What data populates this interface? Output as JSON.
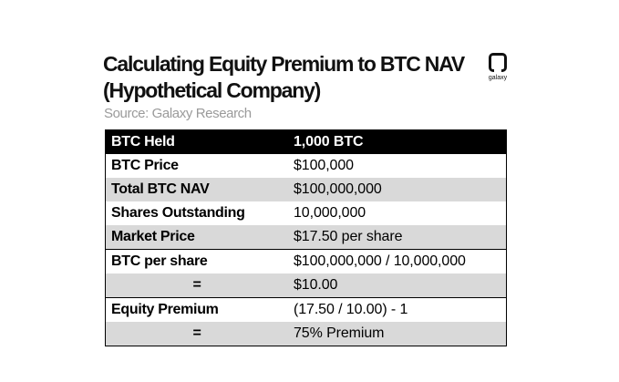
{
  "title_lines": [
    "Calculating Equity Premium to BTC NAV",
    "(Hypothetical Company)"
  ],
  "source": "Source: Galaxy Research",
  "logo_text": "galaxy",
  "table": {
    "rows": [
      {
        "label": "BTC Held",
        "value": "1,000 BTC"
      },
      {
        "label": "BTC Price",
        "value": "$100,000"
      },
      {
        "label": "Total BTC NAV",
        "value": "$100,000,000"
      },
      {
        "label": "Shares Outstanding",
        "value": "10,000,000"
      },
      {
        "label": "Market Price",
        "value": "$17.50 per share"
      },
      {
        "label": "BTC per share",
        "value": "$100,000,000 / 10,000,000"
      },
      {
        "label": "=",
        "value": "$10.00"
      },
      {
        "label": "Equity Premium",
        "value": "(17.50 / 10.00) - 1"
      },
      {
        "label": "=",
        "value": "75% Premium"
      }
    ]
  }
}
